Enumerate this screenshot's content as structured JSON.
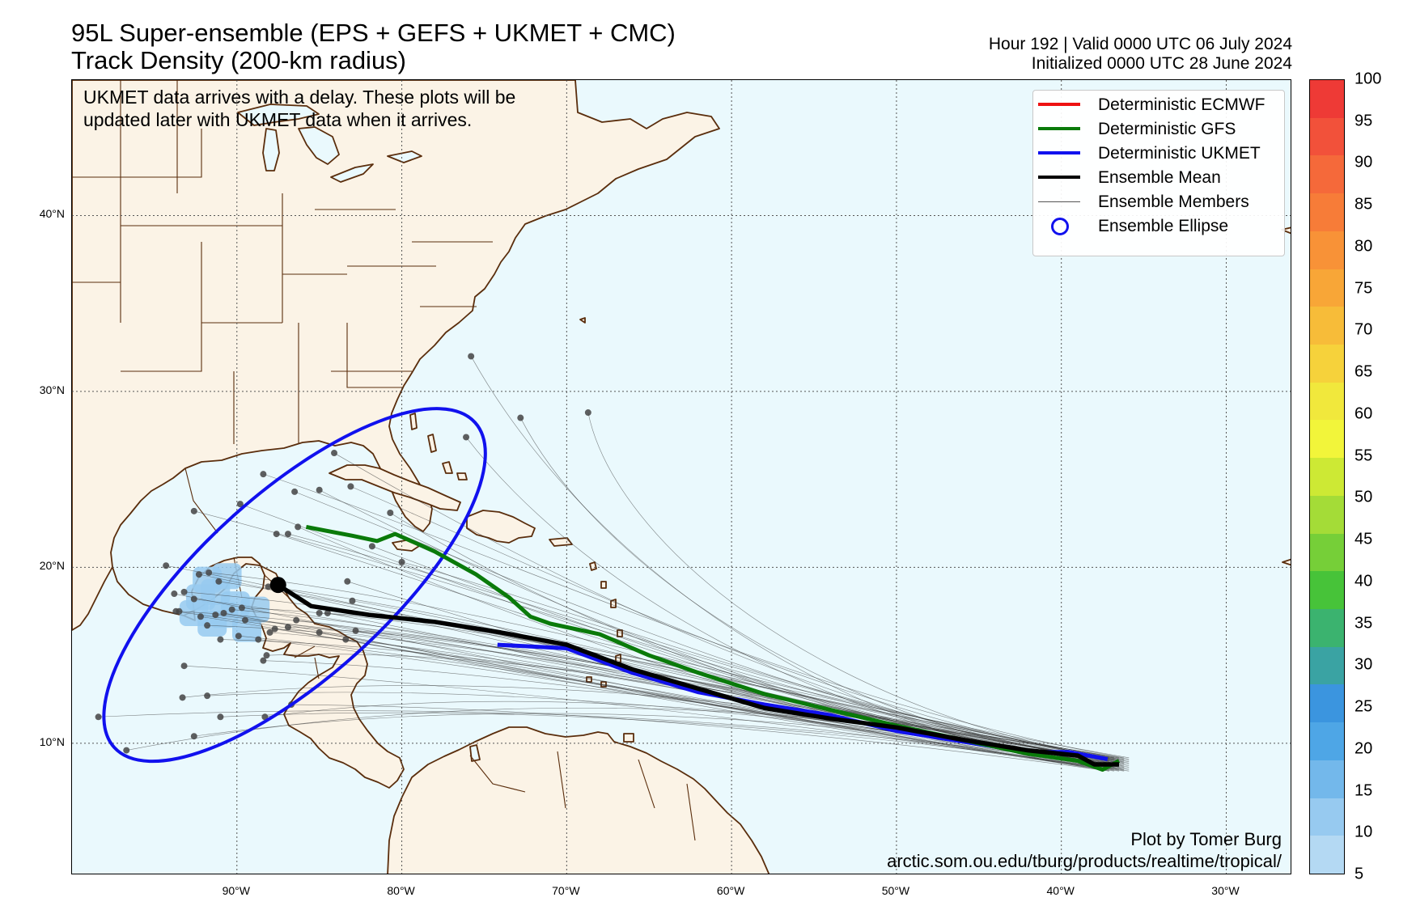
{
  "header": {
    "title_line1": "95L Super-ensemble (EPS + GEFS + UKMET + CMC)",
    "title_line2": "Track Density (200-km radius)",
    "valid_line": "Hour 192 | Valid 0000 UTC 06 July 2024",
    "init_line": "Initialized 0000 UTC 28 June 2024"
  },
  "note": {
    "line1": "UKMET data arrives with a delay. These plots will be",
    "line2": "updated later with UKMET data when it arrives."
  },
  "legend": {
    "items": [
      {
        "label": "Deterministic ECMWF",
        "color": "#ee1111",
        "style": "thick-line"
      },
      {
        "label": "Deterministic GFS",
        "color": "#0a7a0a",
        "style": "thick-line"
      },
      {
        "label": "Deterministic UKMET",
        "color": "#1111ee",
        "style": "thick-line"
      },
      {
        "label": "Ensemble Mean",
        "color": "#000000",
        "style": "thick-line"
      },
      {
        "label": "Ensemble Members",
        "color": "#555555",
        "style": "thin-line"
      },
      {
        "label": "Ensemble Ellipse",
        "color": "#1111ee",
        "style": "circle"
      }
    ]
  },
  "axes": {
    "lat_ticks": [
      "40°N",
      "30°N",
      "20°N",
      "10°N"
    ],
    "lat_values": [
      40,
      30,
      20,
      10
    ],
    "lon_ticks": [
      "90°W",
      "80°W",
      "70°W",
      "60°W",
      "50°W",
      "40°W",
      "30°W"
    ],
    "lon_values": [
      -90,
      -80,
      -70,
      -60,
      -50,
      -40,
      -30
    ],
    "lon_range": [
      -100,
      -26
    ],
    "lat_range": [
      2.5,
      47.7
    ]
  },
  "colorbar": {
    "labels": [
      "100",
      "95",
      "90",
      "85",
      "80",
      "75",
      "70",
      "65",
      "60",
      "55",
      "50",
      "45",
      "40",
      "35",
      "30",
      "25",
      "20",
      "15",
      "10",
      "5"
    ],
    "colors": [
      "#ee3a36",
      "#f2513a",
      "#f5693a",
      "#f77c38",
      "#f89237",
      "#f8a637",
      "#f7bc39",
      "#f6d23b",
      "#f1e83c",
      "#f2f53a",
      "#cde934",
      "#a4dc37",
      "#76cf38",
      "#47c339",
      "#3bb36f",
      "#3aa3a3",
      "#3b95df",
      "#4ea6e6",
      "#73b8eb",
      "#97caf0",
      "#b4d9f3"
    ]
  },
  "tracks": {
    "genesis": [
      -87.5,
      19.0
    ],
    "ensemble_mean": [
      [
        -87.5,
        19.0
      ],
      [
        -85.5,
        17.8
      ],
      [
        -82,
        17.3
      ],
      [
        -78,
        16.9
      ],
      [
        -74,
        16.3
      ],
      [
        -70,
        15.6
      ],
      [
        -66,
        14.2
      ],
      [
        -62,
        13.1
      ],
      [
        -58,
        12.0
      ],
      [
        -54,
        11.4
      ],
      [
        -50,
        10.9
      ],
      [
        -46,
        10.2
      ],
      [
        -42,
        9.6
      ],
      [
        -39,
        9.3
      ],
      [
        -38,
        8.8
      ],
      [
        -36.5,
        8.8
      ]
    ],
    "gfs": [
      [
        -85.8,
        22.3
      ],
      [
        -83,
        21.8
      ],
      [
        -81.5,
        21.5
      ],
      [
        -80.4,
        21.9
      ],
      [
        -78,
        20.9
      ],
      [
        -75.5,
        19.6
      ],
      [
        -73.5,
        18.3
      ],
      [
        -72.2,
        17.2
      ],
      [
        -71,
        16.8
      ],
      [
        -68,
        16.2
      ],
      [
        -65,
        15.0
      ],
      [
        -62,
        14.0
      ],
      [
        -58,
        12.8
      ],
      [
        -54,
        11.9
      ],
      [
        -50,
        11.0
      ],
      [
        -46,
        10.2
      ],
      [
        -42,
        9.4
      ],
      [
        -39,
        9.0
      ],
      [
        -37.5,
        8.5
      ],
      [
        -36.5,
        9.0
      ]
    ],
    "ukmet": [
      [
        -74.2,
        15.6
      ],
      [
        -70,
        15.4
      ],
      [
        -66,
        14.0
      ],
      [
        -62,
        12.9
      ],
      [
        -58,
        12.2
      ],
      [
        -54,
        11.6
      ],
      [
        -50,
        10.7
      ],
      [
        -46,
        10.1
      ],
      [
        -42,
        9.5
      ],
      [
        -39.5,
        9.5
      ],
      [
        -37.2,
        9.1
      ]
    ],
    "ellipse": {
      "center": [
        -86.5,
        19.0
      ],
      "semi_major_deg": 15.5,
      "semi_minor_deg": 5.0,
      "rotation_deg": 42
    },
    "member_endpoints": [
      [
        -75.8,
        32.0
      ],
      [
        -72.8,
        28.5
      ],
      [
        -68.7,
        28.8
      ],
      [
        -76.1,
        27.4
      ],
      [
        -84.1,
        26.5
      ],
      [
        -83.1,
        24.6
      ],
      [
        -85.0,
        24.4
      ],
      [
        -86.5,
        24.3
      ],
      [
        -88.4,
        25.3
      ],
      [
        -89.8,
        23.6
      ],
      [
        -92.6,
        23.2
      ],
      [
        -86.3,
        22.3
      ],
      [
        -87.6,
        21.9
      ],
      [
        -86.9,
        21.9
      ],
      [
        -80.7,
        23.1
      ],
      [
        -81.8,
        21.2
      ],
      [
        -80.0,
        20.3
      ],
      [
        -83.3,
        19.2
      ],
      [
        -83.0,
        18.1
      ],
      [
        -85.0,
        17.4
      ],
      [
        -84.5,
        17.4
      ],
      [
        -82.8,
        16.4
      ],
      [
        -83.4,
        15.9
      ],
      [
        -86.4,
        17.0
      ],
      [
        -86.9,
        16.6
      ],
      [
        -87.7,
        16.5
      ],
      [
        -88.0,
        16.3
      ],
      [
        -88.2,
        15.0
      ],
      [
        -88.7,
        15.9
      ],
      [
        -89.5,
        17.0
      ],
      [
        -89.7,
        17.7
      ],
      [
        -89.9,
        16.1
      ],
      [
        -90.3,
        17.6
      ],
      [
        -90.8,
        17.4
      ],
      [
        -91.3,
        17.3
      ],
      [
        -91.8,
        16.7
      ],
      [
        -92.2,
        17.2
      ],
      [
        -92.6,
        18.2
      ],
      [
        -93.2,
        18.6
      ],
      [
        -93.7,
        17.5
      ],
      [
        -91.1,
        19.2
      ],
      [
        -91.7,
        19.7
      ],
      [
        -92.3,
        19.6
      ],
      [
        -91.0,
        15.9
      ],
      [
        -93.8,
        18.5
      ],
      [
        -94.3,
        20.1
      ],
      [
        -93.5,
        17.5
      ],
      [
        -93.2,
        14.4
      ],
      [
        -91.8,
        12.7
      ],
      [
        -93.3,
        12.6
      ],
      [
        -91.0,
        11.5
      ],
      [
        -92.6,
        10.4
      ],
      [
        -96.7,
        9.6
      ],
      [
        -98.4,
        11.5
      ],
      [
        -88.3,
        11.5
      ],
      [
        -86.7,
        12.2
      ],
      [
        -88.4,
        14.7
      ],
      [
        -88.1,
        18.9
      ],
      [
        -85.0,
        16.3
      ]
    ],
    "density_cells": [
      [
        -91.5,
        16.8
      ],
      [
        -90.8,
        17.3
      ],
      [
        -90.1,
        17.9
      ],
      [
        -91.3,
        18.6
      ],
      [
        -92.2,
        18.3
      ],
      [
        -89.4,
        16.5
      ],
      [
        -91.8,
        19.3
      ],
      [
        -90.6,
        19.5
      ],
      [
        -88.9,
        17.6
      ],
      [
        -92.6,
        17.4
      ]
    ]
  },
  "credit": {
    "line1": "Plot by Tomer Burg",
    "line2": "arctic.som.ou.edu/tburg/products/realtime/tropical/"
  }
}
